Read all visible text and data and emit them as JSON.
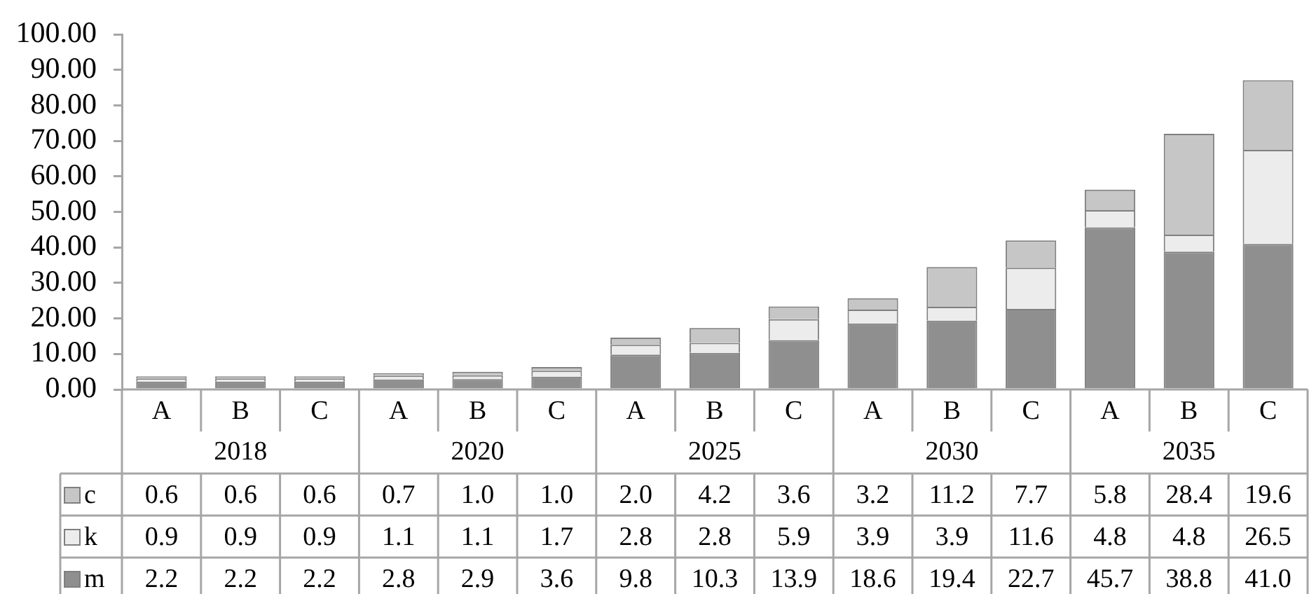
{
  "chart_data": {
    "type": "bar",
    "stacked": true,
    "categories": [
      "A",
      "B",
      "C",
      "A",
      "B",
      "C",
      "A",
      "B",
      "C",
      "A",
      "B",
      "C",
      "A",
      "B",
      "C"
    ],
    "annotations": [
      "2018",
      "2020",
      "2025",
      "2030",
      "2035"
    ],
    "series": [
      {
        "name": "m",
        "color": "#8f8f8f",
        "values": [
          2.2,
          2.2,
          2.2,
          2.8,
          2.9,
          3.6,
          9.8,
          10.3,
          13.9,
          18.6,
          19.4,
          22.7,
          45.7,
          38.8,
          41.0
        ],
        "value_labels": [
          "2.2",
          "2.2",
          "2.2",
          "2.8",
          "2.9",
          "3.6",
          "9.8",
          "10.3",
          "13.9",
          "18.6",
          "19.4",
          "22.7",
          "45.7",
          "38.8",
          "41.0"
        ]
      },
      {
        "name": "k",
        "color": "#ececec",
        "values": [
          0.9,
          0.9,
          0.9,
          1.1,
          1.1,
          1.7,
          2.8,
          2.8,
          5.9,
          3.9,
          3.9,
          11.6,
          4.8,
          4.8,
          26.5
        ],
        "value_labels": [
          "0.9",
          "0.9",
          "0.9",
          "1.1",
          "1.1",
          "1.7",
          "2.8",
          "2.8",
          "5.9",
          "3.9",
          "3.9",
          "11.6",
          "4.8",
          "4.8",
          "26.5"
        ]
      },
      {
        "name": "c",
        "color": "#c6c6c6",
        "values": [
          0.6,
          0.6,
          0.6,
          0.7,
          1.0,
          1.0,
          2.0,
          4.2,
          3.6,
          3.2,
          11.2,
          7.7,
          5.8,
          28.4,
          19.6
        ],
        "value_labels": [
          "0.6",
          "0.6",
          "0.6",
          "0.7",
          "1.0",
          "1.0",
          "2.0",
          "4.2",
          "3.6",
          "3.2",
          "11.2",
          "7.7",
          "5.8",
          "28.4",
          "19.6"
        ]
      }
    ],
    "ylim": [
      0,
      100
    ],
    "yticks": [
      {
        "value": 0,
        "label": "0.00"
      },
      {
        "value": 10,
        "label": "10.00"
      },
      {
        "value": 20,
        "label": "20.00"
      },
      {
        "value": 30,
        "label": "30.00"
      },
      {
        "value": 40,
        "label": "40.00"
      },
      {
        "value": 50,
        "label": "50.00"
      },
      {
        "value": 60,
        "label": "60.00"
      },
      {
        "value": 70,
        "label": "70.00"
      },
      {
        "value": 80,
        "label": "80.00"
      },
      {
        "value": 90,
        "label": "90.00"
      },
      {
        "value": 100,
        "label": "100.00"
      }
    ],
    "grid": false,
    "legend": "bottom left"
  }
}
